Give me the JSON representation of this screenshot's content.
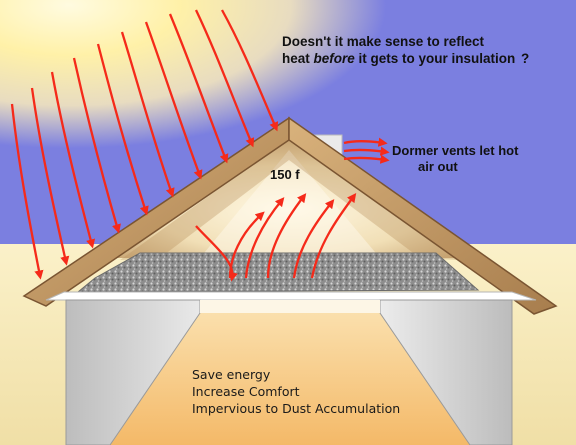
{
  "headline": {
    "line1": "Doesn't it make sense to reflect",
    "line2_start": "heat ",
    "line2_emphasis": "before",
    "line2_end": " it gets to your insulation ",
    "line2_mark": "?"
  },
  "dormer_note": {
    "line1": "Dormer vents let hot",
    "line2": "air out"
  },
  "attic_temperature": "150 f",
  "benefits": [
    "Save energy",
    "Increase Comfort",
    "Impervious to Dust Accumulation"
  ],
  "colors": {
    "sky": "#7b7fe0",
    "sun": "#fff4b0",
    "ground": "#f5e8b8",
    "roof": "#c39a66",
    "attic_glow": "#f6e9c8",
    "insulation": "#8a8a8a",
    "wall": "#d9d9d9",
    "floor": "#f6c27a",
    "arrow": "#f52a1a"
  }
}
